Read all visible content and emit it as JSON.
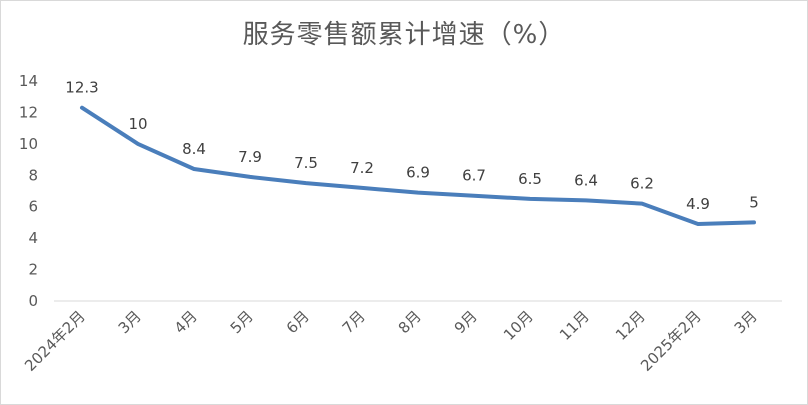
{
  "chart_data": {
    "type": "line",
    "title": "服务零售额累计增速（%）",
    "categories": [
      "2024年2月",
      "3月",
      "4月",
      "5月",
      "6月",
      "7月",
      "8月",
      "9月",
      "10月",
      "11月",
      "12月",
      "2025年2月",
      "3月"
    ],
    "series": [
      {
        "values": [
          12.3,
          10,
          8.4,
          7.9,
          7.5,
          7.2,
          6.9,
          6.7,
          6.5,
          6.4,
          6.2,
          4.9,
          5
        ]
      }
    ],
    "data_labels": [
      "12.3",
      "10",
      "8.4",
      "7.9",
      "7.5",
      "7.2",
      "6.9",
      "6.7",
      "6.5",
      "6.4",
      "6.2",
      "4.9",
      "5"
    ],
    "yticks": [
      0,
      2,
      4,
      6,
      8,
      10,
      12,
      14
    ],
    "ylim": [
      0,
      14
    ],
    "grid": false,
    "line_color": "#4a7ebb"
  }
}
